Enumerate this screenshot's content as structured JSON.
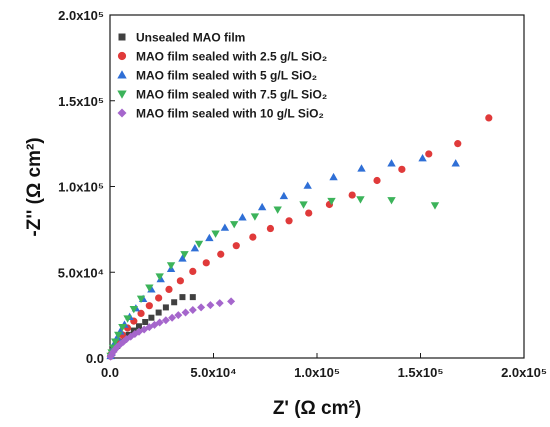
{
  "chart_data": {
    "type": "scatter",
    "xlabel": "Z' (Ω cm²)",
    "ylabel": "-Z'' (Ω cm²)",
    "xlim": [
      0,
      200000
    ],
    "ylim": [
      0,
      200000
    ],
    "x_ticks": [
      {
        "value": 0,
        "label": "0.0"
      },
      {
        "value": 50000,
        "label": "5.0x10⁴"
      },
      {
        "value": 100000,
        "label": "1.0x10⁵"
      },
      {
        "value": 150000,
        "label": "1.5x10⁵"
      },
      {
        "value": 200000,
        "label": "2.0x10⁵"
      }
    ],
    "y_ticks": [
      {
        "value": 0,
        "label": "0.0"
      },
      {
        "value": 50000,
        "label": "5.0x10⁴"
      },
      {
        "value": 100000,
        "label": "1.0x10⁵"
      },
      {
        "value": 150000,
        "label": "1.5x10⁵"
      },
      {
        "value": 200000,
        "label": "2.0x10⁵"
      }
    ],
    "grid": false,
    "legend_position": "top-left",
    "series": [
      {
        "name": "Unsealed MAO film",
        "marker": "square",
        "color": "#404040",
        "points": [
          [
            500,
            1500
          ],
          [
            1000,
            3000
          ],
          [
            2000,
            5000
          ],
          [
            3500,
            7000
          ],
          [
            5000,
            9000
          ],
          [
            7000,
            11000
          ],
          [
            9000,
            13500
          ],
          [
            11500,
            16000
          ],
          [
            14000,
            18500
          ],
          [
            17000,
            21000
          ],
          [
            20000,
            23500
          ],
          [
            23500,
            26500
          ],
          [
            27000,
            29500
          ],
          [
            31000,
            32500
          ],
          [
            35000,
            35500
          ],
          [
            40000,
            35500
          ]
        ]
      },
      {
        "name": "MAO film sealed with 2.5 g/L SiO₂",
        "marker": "circle",
        "color": "#e03a3a",
        "points": [
          [
            300,
            1000
          ],
          [
            800,
            2500
          ],
          [
            1500,
            4500
          ],
          [
            2500,
            7000
          ],
          [
            4000,
            10000
          ],
          [
            6000,
            13500
          ],
          [
            8500,
            17500
          ],
          [
            11500,
            21500
          ],
          [
            15000,
            26000
          ],
          [
            19000,
            30500
          ],
          [
            23500,
            35000
          ],
          [
            28500,
            40000
          ],
          [
            34000,
            45000
          ],
          [
            40000,
            50500
          ],
          [
            46500,
            55500
          ],
          [
            53500,
            60500
          ],
          [
            61000,
            65500
          ],
          [
            69000,
            70500
          ],
          [
            77500,
            75500
          ],
          [
            86500,
            80000
          ],
          [
            96000,
            84500
          ],
          [
            106000,
            89500
          ],
          [
            117000,
            95000
          ],
          [
            129000,
            103500
          ],
          [
            141000,
            110000
          ],
          [
            154000,
            119000
          ],
          [
            168000,
            125000
          ],
          [
            183000,
            140000
          ]
        ]
      },
      {
        "name": "MAO film sealed with 5 g/L SiO₂",
        "marker": "triangle-up",
        "color": "#2f6fd6",
        "points": [
          [
            300,
            1200
          ],
          [
            700,
            3000
          ],
          [
            1300,
            5500
          ],
          [
            2200,
            8500
          ],
          [
            3500,
            12000
          ],
          [
            5000,
            15500
          ],
          [
            7000,
            19500
          ],
          [
            9500,
            24000
          ],
          [
            12500,
            29000
          ],
          [
            16000,
            34500
          ],
          [
            20000,
            40000
          ],
          [
            24500,
            46000
          ],
          [
            29500,
            52000
          ],
          [
            35000,
            58000
          ],
          [
            41000,
            64000
          ],
          [
            48000,
            70000
          ],
          [
            55500,
            76000
          ],
          [
            64000,
            82000
          ],
          [
            73500,
            88000
          ],
          [
            84000,
            94500
          ],
          [
            95500,
            100500
          ],
          [
            108000,
            105500
          ],
          [
            121500,
            110500
          ],
          [
            136000,
            113500
          ],
          [
            151000,
            116500
          ],
          [
            167000,
            113500
          ]
        ]
      },
      {
        "name": "MAO film sealed with 7.5 g/L SiO₂",
        "marker": "triangle-down",
        "color": "#3cb35a",
        "points": [
          [
            300,
            1200
          ],
          [
            800,
            3200
          ],
          [
            1500,
            6000
          ],
          [
            2500,
            9500
          ],
          [
            4000,
            13500
          ],
          [
            6000,
            18000
          ],
          [
            8500,
            23000
          ],
          [
            11500,
            28500
          ],
          [
            15000,
            34500
          ],
          [
            19000,
            41000
          ],
          [
            24000,
            47500
          ],
          [
            29500,
            54000
          ],
          [
            36000,
            60500
          ],
          [
            43000,
            66500
          ],
          [
            51000,
            72500
          ],
          [
            60000,
            78000
          ],
          [
            70000,
            82500
          ],
          [
            81000,
            86500
          ],
          [
            93500,
            89500
          ],
          [
            107000,
            91500
          ],
          [
            121000,
            92500
          ],
          [
            136000,
            92000
          ],
          [
            157000,
            89000
          ]
        ]
      },
      {
        "name": "MAO film sealed with 10 g/L SiO₂",
        "marker": "diamond",
        "color": "#a566cc",
        "points": [
          [
            300,
            800
          ],
          [
            800,
            2000
          ],
          [
            1500,
            3500
          ],
          [
            2500,
            5000
          ],
          [
            3500,
            6500
          ],
          [
            5000,
            8000
          ],
          [
            6500,
            9500
          ],
          [
            8000,
            11000
          ],
          [
            10000,
            12500
          ],
          [
            12000,
            14000
          ],
          [
            14000,
            15300
          ],
          [
            16500,
            16600
          ],
          [
            19000,
            18000
          ],
          [
            21500,
            19300
          ],
          [
            24000,
            20700
          ],
          [
            27000,
            22000
          ],
          [
            30000,
            23500
          ],
          [
            33000,
            25000
          ],
          [
            36500,
            26500
          ],
          [
            40000,
            28000
          ],
          [
            44000,
            29500
          ],
          [
            48500,
            30800
          ],
          [
            53000,
            32000
          ],
          [
            58500,
            33000
          ]
        ]
      }
    ]
  }
}
